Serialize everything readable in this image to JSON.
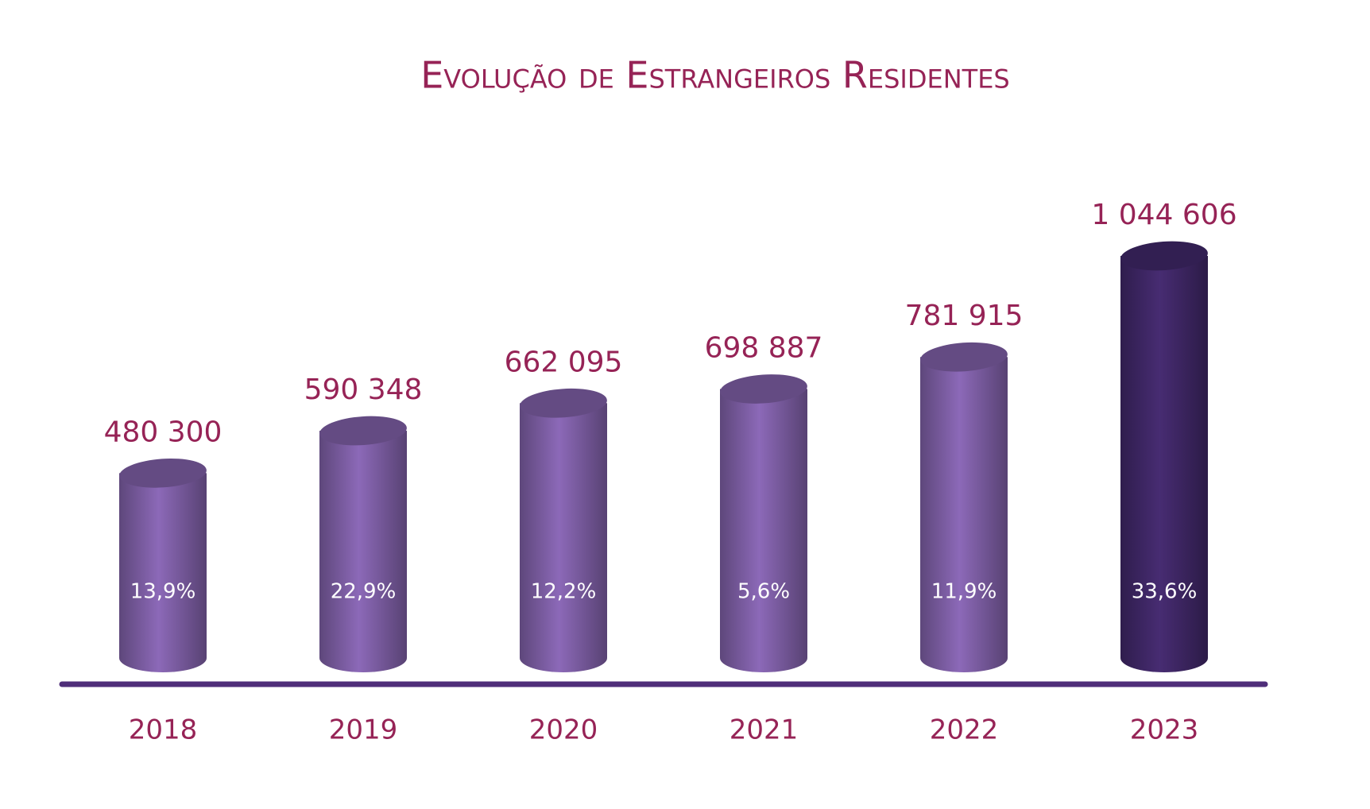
{
  "chart_data": {
    "type": "bar",
    "title": "Evolução de Estrangeiros Residentes",
    "categories": [
      "2018",
      "2019",
      "2020",
      "2021",
      "2022",
      "2023"
    ],
    "values": [
      480300,
      590348,
      662095,
      698887,
      781915,
      1044606
    ],
    "value_labels": [
      "480 300",
      "590 348",
      "662 095",
      "698 887",
      "781 915",
      "1 044 606"
    ],
    "growth_labels": [
      "13,9%",
      "22,9%",
      "12,2%",
      "5,6%",
      "11,9%",
      "33,6%"
    ],
    "colors": [
      "#7d5ea4",
      "#7d5ea4",
      "#7d5ea4",
      "#7d5ea4",
      "#7d5ea4",
      "#3f2766"
    ]
  }
}
